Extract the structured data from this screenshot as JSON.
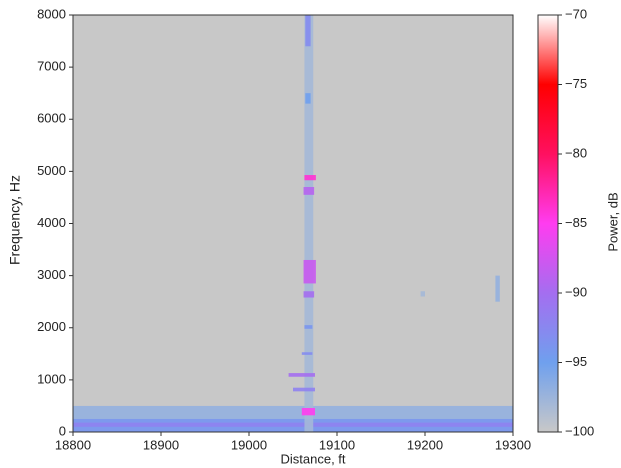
{
  "chart_data": {
    "type": "spectrogram",
    "x_label": "Distance, ft",
    "y_label": "Frequency, Hz",
    "colorbar_label": "Power, dB",
    "xlim": [
      18800,
      19300
    ],
    "xticks": [
      18800,
      18900,
      19000,
      19100,
      19200,
      19300
    ],
    "ylim": [
      0,
      8000
    ],
    "yticks": [
      0,
      1000,
      2000,
      3000,
      4000,
      5000,
      6000,
      7000,
      8000
    ],
    "clim": [
      -100,
      -70
    ],
    "cticks": [
      {
        "value": -100,
        "label": "−100"
      },
      {
        "value": -95,
        "label": "−95"
      },
      {
        "value": -90,
        "label": "−90"
      },
      {
        "value": -85,
        "label": "−85"
      },
      {
        "value": -80,
        "label": "−80"
      },
      {
        "value": -75,
        "label": "−75"
      },
      {
        "value": -70,
        "label": "−70"
      }
    ],
    "colormap": [
      "#c8c8c8",
      "#6fa0ee",
      "#a46ef0",
      "#ff3cf0",
      "#ff1060",
      "#ff0000",
      "#ffffff"
    ],
    "cells": [
      {
        "distance": [
          18800,
          19300
        ],
        "frequency": [
          0,
          500
        ],
        "power": -97
      },
      {
        "distance": [
          18800,
          19300
        ],
        "frequency": [
          0,
          250
        ],
        "power": -94
      },
      {
        "distance": [
          18800,
          19300
        ],
        "frequency": [
          100,
          180
        ],
        "power": -92
      },
      {
        "distance": [
          19063,
          19073
        ],
        "frequency": [
          0,
          8000
        ],
        "power": -98
      },
      {
        "distance": [
          19060,
          19075
        ],
        "frequency": [
          320,
          460
        ],
        "power": -85
      },
      {
        "distance": [
          19050,
          19075
        ],
        "frequency": [
          780,
          850
        ],
        "power": -92
      },
      {
        "distance": [
          19045,
          19075
        ],
        "frequency": [
          1060,
          1130
        ],
        "power": -90
      },
      {
        "distance": [
          19060,
          19072
        ],
        "frequency": [
          1480,
          1530
        ],
        "power": -93
      },
      {
        "distance": [
          19063,
          19072
        ],
        "frequency": [
          1980,
          2050
        ],
        "power": -94
      },
      {
        "distance": [
          19062,
          19074
        ],
        "frequency": [
          2580,
          2700
        ],
        "power": -90
      },
      {
        "distance": [
          19062,
          19076
        ],
        "frequency": [
          2850,
          3300
        ],
        "power": -88
      },
      {
        "distance": [
          19062,
          19074
        ],
        "frequency": [
          4550,
          4700
        ],
        "power": -89
      },
      {
        "distance": [
          19063,
          19076
        ],
        "frequency": [
          4830,
          4930
        ],
        "power": -84
      },
      {
        "distance": [
          19064,
          19070
        ],
        "frequency": [
          7400,
          8000
        ],
        "power": -93
      },
      {
        "distance": [
          19064,
          19070
        ],
        "frequency": [
          6300,
          6500
        ],
        "power": -95
      },
      {
        "distance": [
          19280,
          19285
        ],
        "frequency": [
          2500,
          3000
        ],
        "power": -97
      },
      {
        "distance": [
          19195,
          19200
        ],
        "frequency": [
          2600,
          2700
        ],
        "power": -98
      }
    ]
  }
}
